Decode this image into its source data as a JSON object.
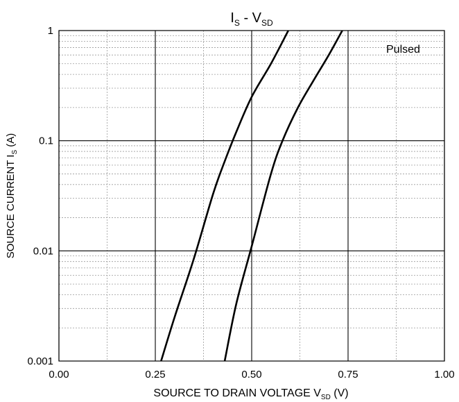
{
  "chart_data": {
    "type": "line",
    "title": {
      "main": "I",
      "main_sub": "S",
      "separator": " - ",
      "tail": "V",
      "tail_sub": "SD"
    },
    "xlabel": {
      "main": "SOURCE TO DRAIN VOLTAGE V",
      "sub": "SD",
      "tail": " (V)"
    },
    "ylabel": {
      "main": "SOURCE CURRENT I",
      "sub": "S",
      "tail": " (A)"
    },
    "annotation": "Pulsed",
    "xlim": [
      0.0,
      1.0
    ],
    "ylim": [
      0.001,
      1
    ],
    "yscale": "log",
    "grid": true,
    "x_ticks": [
      {
        "value": 0.0,
        "label": "0.00"
      },
      {
        "value": 0.25,
        "label": "0.25"
      },
      {
        "value": 0.5,
        "label": "0.50"
      },
      {
        "value": 0.75,
        "label": "0.75"
      },
      {
        "value": 1.0,
        "label": "1.00"
      }
    ],
    "y_ticks": [
      {
        "value": 0.001,
        "label": "0.001"
      },
      {
        "value": 0.01,
        "label": "0.01"
      },
      {
        "value": 0.1,
        "label": "0.1"
      },
      {
        "value": 1,
        "label": "1"
      }
    ],
    "series": [
      {
        "color": "#000000",
        "points": [
          [
            0.265,
            0.001
          ],
          [
            0.3,
            0.0025
          ],
          [
            0.35,
            0.0085
          ],
          [
            0.4,
            0.033
          ],
          [
            0.43,
            0.065
          ],
          [
            0.46,
            0.12
          ],
          [
            0.5,
            0.25
          ],
          [
            0.55,
            0.5
          ],
          [
            0.595,
            1.0
          ]
        ]
      },
      {
        "color": "#000000",
        "points": [
          [
            0.43,
            0.001
          ],
          [
            0.46,
            0.0033
          ],
          [
            0.5,
            0.011
          ],
          [
            0.55,
            0.05
          ],
          [
            0.58,
            0.1
          ],
          [
            0.62,
            0.2
          ],
          [
            0.66,
            0.35
          ],
          [
            0.7,
            0.6
          ],
          [
            0.735,
            1.0
          ]
        ]
      }
    ]
  }
}
